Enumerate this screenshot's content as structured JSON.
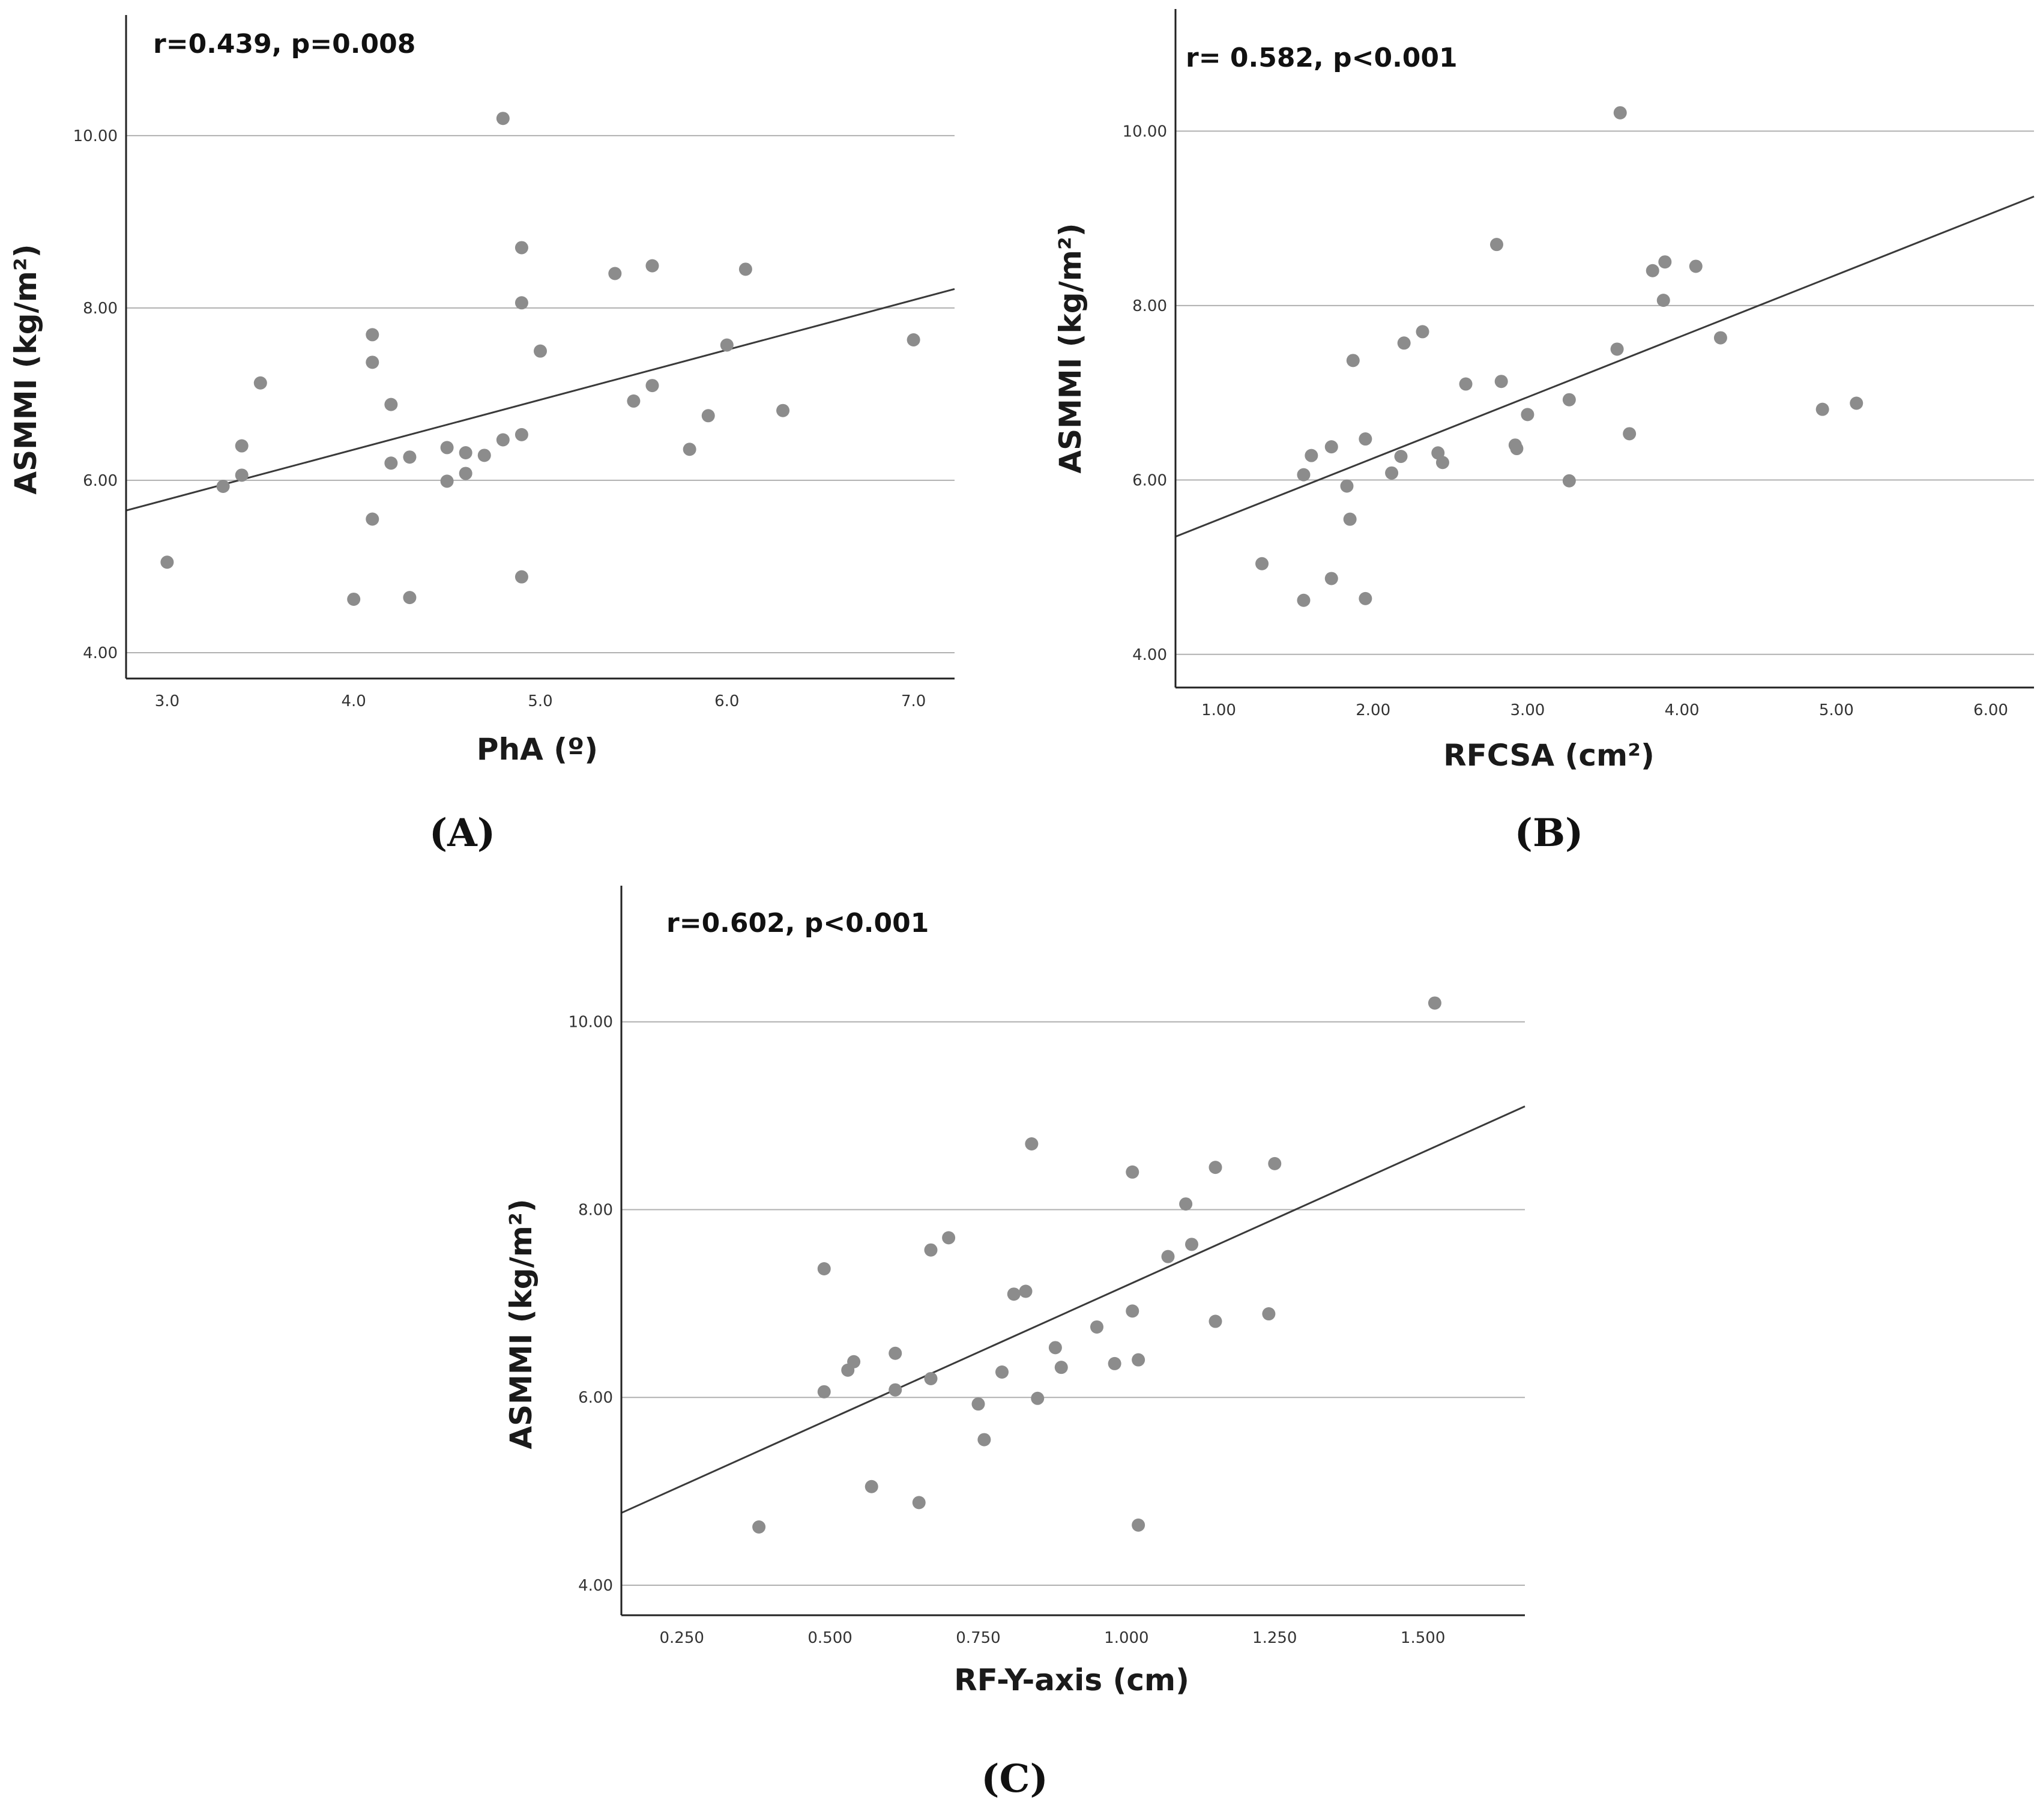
{
  "colors": {
    "point": "#8c8c8c",
    "fit_line": "#3a3a3a",
    "grid": "#b0b0b0",
    "axis": "#222222"
  },
  "chart_data": [
    {
      "id": "A",
      "caption": "(A)",
      "type": "scatter",
      "title": "",
      "annotation": "r=0.439, p=0.008",
      "xlabel": "PhA (º)",
      "ylabel": "ASMMI (kg/m²)",
      "xlim": [
        2.78,
        7.22
      ],
      "ylim": [
        3.7,
        11.4
      ],
      "xticks": [
        3.0,
        4.0,
        5.0,
        6.0,
        7.0
      ],
      "xtick_labels": [
        "3.0",
        "4.0",
        "5.0",
        "6.0",
        "7.0"
      ],
      "yticks": [
        4,
        6,
        8,
        10
      ],
      "ytick_labels": [
        "4.00",
        "6.00",
        "8.00",
        "10.00"
      ],
      "grid": "horizontal",
      "fit_line": {
        "x1": 2.78,
        "y1": 5.65,
        "x2": 7.22,
        "y2": 8.22
      },
      "points": [
        [
          3.0,
          5.05
        ],
        [
          3.3,
          5.93
        ],
        [
          3.4,
          6.06
        ],
        [
          3.4,
          6.4
        ],
        [
          3.5,
          7.13
        ],
        [
          4.0,
          4.62
        ],
        [
          4.1,
          5.55
        ],
        [
          4.1,
          7.37
        ],
        [
          4.1,
          7.69
        ],
        [
          4.2,
          6.2
        ],
        [
          4.2,
          6.88
        ],
        [
          4.3,
          4.64
        ],
        [
          4.3,
          6.27
        ],
        [
          4.5,
          5.99
        ],
        [
          4.5,
          6.38
        ],
        [
          4.6,
          6.08
        ],
        [
          4.6,
          6.32
        ],
        [
          4.7,
          6.29
        ],
        [
          4.8,
          6.47
        ],
        [
          4.8,
          10.2
        ],
        [
          4.9,
          4.88
        ],
        [
          4.9,
          6.53
        ],
        [
          4.9,
          8.06
        ],
        [
          4.9,
          8.7
        ],
        [
          5.0,
          7.5
        ],
        [
          5.4,
          8.4
        ],
        [
          5.5,
          6.92
        ],
        [
          5.6,
          7.1
        ],
        [
          5.6,
          8.49
        ],
        [
          5.8,
          6.36
        ],
        [
          5.9,
          6.75
        ],
        [
          6.0,
          7.57
        ],
        [
          6.1,
          8.45
        ],
        [
          6.3,
          6.81
        ],
        [
          7.0,
          7.63
        ]
      ]
    },
    {
      "id": "B",
      "caption": "(B)",
      "type": "scatter",
      "title": "",
      "annotation": "r= 0.582, p<0.001",
      "xlabel": "RFCSA (cm²)",
      "ylabel": "ASMMI (kg/m²)",
      "xlim": [
        0.72,
        6.28
      ],
      "ylim": [
        3.62,
        11.4
      ],
      "xticks": [
        1,
        2,
        3,
        4,
        5,
        6
      ],
      "xtick_labels": [
        "1.00",
        "2.00",
        "3.00",
        "4.00",
        "5.00",
        "6.00"
      ],
      "yticks": [
        4,
        6,
        8,
        10
      ],
      "ytick_labels": [
        "4.00",
        "6.00",
        "8.00",
        "10.00"
      ],
      "grid": "horizontal",
      "fit_line": {
        "x1": 0.72,
        "y1": 5.35,
        "x2": 6.28,
        "y2": 9.25
      },
      "points": [
        [
          1.28,
          5.04
        ],
        [
          1.55,
          4.62
        ],
        [
          1.55,
          6.06
        ],
        [
          1.6,
          6.28
        ],
        [
          1.73,
          6.38
        ],
        [
          1.73,
          4.87
        ],
        [
          1.83,
          5.93
        ],
        [
          1.85,
          5.55
        ],
        [
          1.87,
          7.37
        ],
        [
          1.95,
          6.47
        ],
        [
          1.95,
          4.64
        ],
        [
          2.12,
          6.08
        ],
        [
          2.18,
          6.27
        ],
        [
          2.2,
          7.57
        ],
        [
          2.32,
          7.7
        ],
        [
          2.42,
          6.31
        ],
        [
          2.45,
          6.2
        ],
        [
          2.6,
          7.1
        ],
        [
          2.8,
          8.7
        ],
        [
          2.83,
          7.13
        ],
        [
          2.92,
          6.4
        ],
        [
          2.93,
          6.36
        ],
        [
          3.0,
          6.75
        ],
        [
          3.27,
          6.92
        ],
        [
          3.27,
          5.99
        ],
        [
          3.58,
          7.5
        ],
        [
          3.6,
          10.21
        ],
        [
          3.66,
          6.53
        ],
        [
          3.81,
          8.4
        ],
        [
          3.88,
          8.06
        ],
        [
          3.89,
          8.5
        ],
        [
          4.09,
          8.45
        ],
        [
          4.25,
          7.63
        ],
        [
          4.91,
          6.81
        ],
        [
          5.13,
          6.88
        ]
      ]
    },
    {
      "id": "C",
      "caption": "(C)",
      "type": "scatter",
      "title": "",
      "annotation": "r=0.602, p<0.001",
      "xlabel": "RF-Y-axis (cm)",
      "ylabel": "ASMMI (kg/m²)",
      "xlim": [
        0.148,
        1.672
      ],
      "ylim": [
        3.68,
        11.45
      ],
      "xticks": [
        0.25,
        0.5,
        0.75,
        1.0,
        1.25,
        1.5
      ],
      "xtick_labels": [
        "0.250",
        "0.500",
        "0.750",
        "1.000",
        "1.250",
        "1.500"
      ],
      "yticks": [
        4,
        6,
        8,
        10
      ],
      "ytick_labels": [
        "4.00",
        "6.00",
        "8.00",
        "10.00"
      ],
      "grid": "horizontal",
      "fit_line": {
        "x1": 0.148,
        "y1": 4.77,
        "x2": 1.672,
        "y2": 9.1
      },
      "points": [
        [
          0.38,
          4.62
        ],
        [
          0.49,
          6.06
        ],
        [
          0.49,
          7.37
        ],
        [
          0.53,
          6.29
        ],
        [
          0.54,
          6.38
        ],
        [
          0.57,
          5.05
        ],
        [
          0.61,
          6.47
        ],
        [
          0.61,
          6.08
        ],
        [
          0.65,
          4.88
        ],
        [
          0.67,
          7.57
        ],
        [
          0.67,
          6.2
        ],
        [
          0.7,
          7.7
        ],
        [
          0.75,
          5.93
        ],
        [
          0.76,
          5.55
        ],
        [
          0.79,
          6.27
        ],
        [
          0.81,
          7.1
        ],
        [
          0.83,
          7.13
        ],
        [
          0.84,
          8.7
        ],
        [
          0.85,
          5.99
        ],
        [
          0.88,
          6.53
        ],
        [
          0.89,
          6.32
        ],
        [
          0.95,
          6.75
        ],
        [
          0.98,
          6.36
        ],
        [
          1.01,
          6.92
        ],
        [
          1.01,
          8.4
        ],
        [
          1.02,
          6.4
        ],
        [
          1.02,
          4.64
        ],
        [
          1.07,
          7.5
        ],
        [
          1.1,
          8.06
        ],
        [
          1.11,
          7.63
        ],
        [
          1.15,
          6.81
        ],
        [
          1.15,
          8.45
        ],
        [
          1.24,
          6.89
        ],
        [
          1.25,
          8.49
        ],
        [
          1.52,
          10.2
        ]
      ]
    }
  ]
}
